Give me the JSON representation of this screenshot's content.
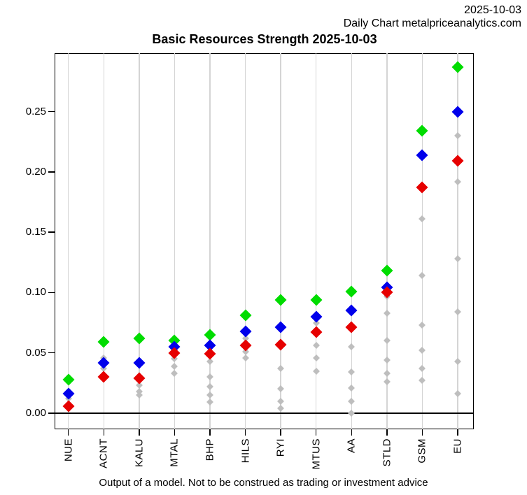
{
  "header": {
    "date": "2025-10-03",
    "subtitle": "Daily Chart metalpriceanalytics.com"
  },
  "chart_data": {
    "type": "scatter",
    "title": "Basic Resources Strength 2025-10-03",
    "xlabel": "",
    "ylabel": "",
    "categories": [
      "NUE",
      "ACNT",
      "KALU",
      "MTAL",
      "BHP",
      "HILS",
      "RYI",
      "MTUS",
      "AA",
      "STLD",
      "GSM",
      "EU"
    ],
    "series": [
      {
        "name": "green",
        "color": "#00dc00",
        "values": [
          0.028,
          0.059,
          0.062,
          0.06,
          0.065,
          0.081,
          0.094,
          0.094,
          0.101,
          0.118,
          0.234,
          0.287
        ]
      },
      {
        "name": "blue",
        "color": "#0000eb",
        "values": [
          0.016,
          0.042,
          0.042,
          0.055,
          0.056,
          0.068,
          0.071,
          0.08,
          0.085,
          0.104,
          0.214,
          0.25
        ]
      },
      {
        "name": "red",
        "color": "#e60000",
        "values": [
          0.006,
          0.03,
          0.029,
          0.05,
          0.049,
          0.056,
          0.057,
          0.067,
          0.071,
          0.1,
          0.187,
          0.209
        ]
      }
    ],
    "gray_series": {
      "name": "history",
      "color": "#bebebe",
      "values_per_category": [
        [
          0.012
        ],
        [
          0.046,
          0.037
        ],
        [
          0.023,
          0.018,
          0.015
        ],
        [
          0.045,
          0.039,
          0.033
        ],
        [
          0.043,
          0.03,
          0.022,
          0.015,
          0.009
        ],
        [
          0.062,
          0.051,
          0.046
        ],
        [
          0.037,
          0.02,
          0.01,
          0.004
        ],
        [
          0.075,
          0.056,
          0.046,
          0.035
        ],
        [
          0.055,
          0.034,
          0.021,
          0.01,
          0.0
        ],
        [
          0.097,
          0.083,
          0.06,
          0.044,
          0.033,
          0.026
        ],
        [
          0.161,
          0.114,
          0.073,
          0.052,
          0.037,
          0.027
        ],
        [
          0.23,
          0.192,
          0.128,
          0.084,
          0.043,
          0.016
        ]
      ]
    },
    "yticks": [
      "0.00",
      "0.05",
      "0.10",
      "0.15",
      "0.20",
      "0.25"
    ],
    "ylim": [
      -0.013,
      0.298
    ],
    "grid": "vertical light-gray per category",
    "zero_line": true,
    "legend": "none",
    "colors": {
      "grid": "#d4d4d4",
      "axis": "#000000",
      "background": "#ffffff"
    }
  },
  "footer": {
    "caption": "Output of a model. Not to be construed as trading or investment advice"
  }
}
